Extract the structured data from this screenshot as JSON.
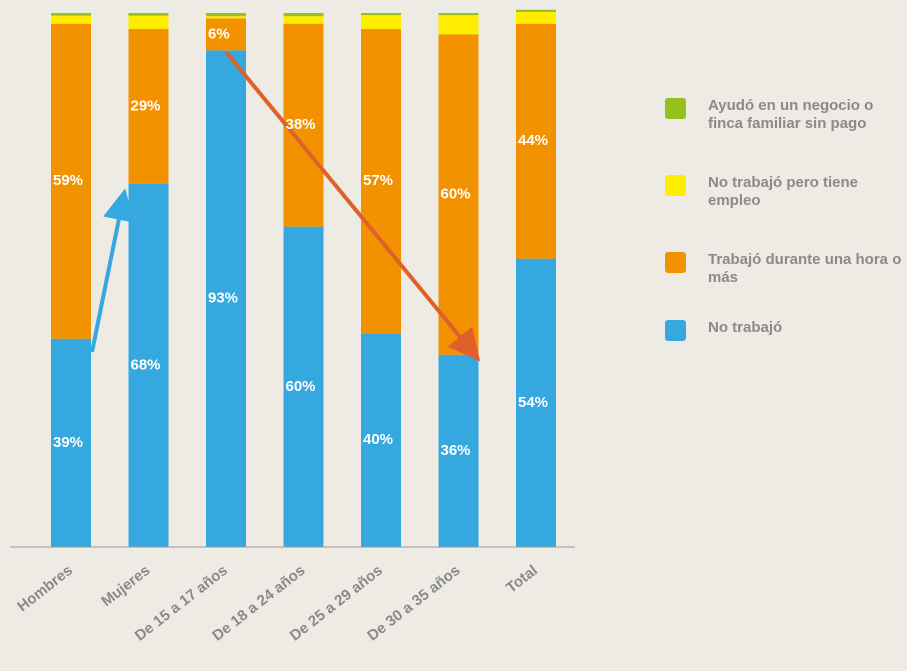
{
  "chart_data": {
    "type": "stacked_bar",
    "categories": [
      "Hombres",
      "Mujeres",
      "De 15 a 17 años",
      "De 18 a 24 años",
      "De 25 a 29 años",
      "De 30 a 35 años",
      "Total"
    ],
    "series": [
      {
        "name": "No trabajó",
        "color": "#35a8e0",
        "values": [
          39,
          68,
          93,
          60,
          40,
          36,
          54
        ],
        "value_labels": [
          "39%",
          "68%",
          "93%",
          "60%",
          "40%",
          "36%",
          "54%"
        ]
      },
      {
        "name": "Trabajó durante una hora o más",
        "color": "#f39200",
        "values": [
          59,
          29,
          6,
          38,
          57,
          60,
          44
        ],
        "value_labels": [
          "59%",
          "29%",
          "6%",
          "38%",
          "57%",
          "60%",
          "44%"
        ]
      },
      {
        "name": "No trabajó pero tiene empleo",
        "color": "#ffed00",
        "values": [
          1.5,
          2.5,
          0.4,
          1.4,
          2.6,
          3.6,
          2.2
        ]
      },
      {
        "name": "Ayudó en un negocio o finca familiar sin pago",
        "color": "#95c11f",
        "values": [
          0.5,
          0.5,
          0.6,
          0.6,
          0.4,
          0.4,
          0.4
        ]
      }
    ],
    "ylim": [
      0,
      100
    ],
    "legend": "right"
  }
}
